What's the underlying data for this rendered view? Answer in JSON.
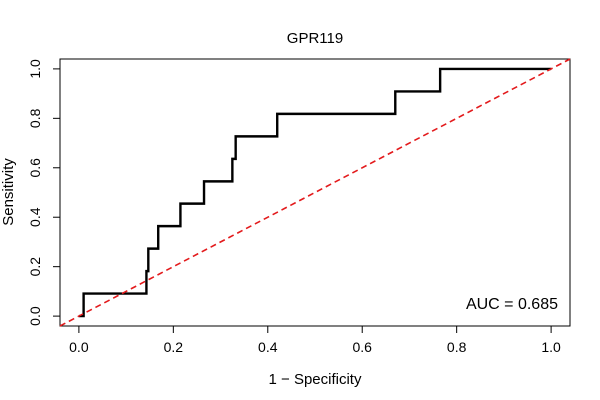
{
  "chart_data": {
    "type": "line",
    "title": "GPR119",
    "xlabel": "1 − Specificity",
    "ylabel": "Sensitivity",
    "xlim": [
      -0.04,
      1.04
    ],
    "ylim": [
      -0.04,
      1.04
    ],
    "x_ticks": [
      "0.0",
      "0.2",
      "0.4",
      "0.6",
      "0.8",
      "1.0"
    ],
    "y_ticks": [
      "0.0",
      "0.2",
      "0.4",
      "0.6",
      "0.8",
      "1.0"
    ],
    "grid": false,
    "series": [
      {
        "color": "#000000",
        "points": [
          [
            0,
            0
          ],
          [
            0.01,
            0
          ],
          [
            0.01,
            0.091
          ],
          [
            0.143,
            0.091
          ],
          [
            0.143,
            0.182
          ],
          [
            0.147,
            0.182
          ],
          [
            0.147,
            0.273
          ],
          [
            0.168,
            0.273
          ],
          [
            0.168,
            0.364
          ],
          [
            0.215,
            0.364
          ],
          [
            0.215,
            0.455
          ],
          [
            0.265,
            0.455
          ],
          [
            0.265,
            0.545
          ],
          [
            0.325,
            0.545
          ],
          [
            0.325,
            0.636
          ],
          [
            0.332,
            0.636
          ],
          [
            0.332,
            0.727
          ],
          [
            0.42,
            0.727
          ],
          [
            0.42,
            0.818
          ],
          [
            0.67,
            0.818
          ],
          [
            0.67,
            0.909
          ],
          [
            0.765,
            0.909
          ],
          [
            0.765,
            1.0
          ],
          [
            1.0,
            1.0
          ]
        ]
      },
      {
        "color": "#e31a1c",
        "dashed": true,
        "points": [
          [
            -0.04,
            -0.04
          ],
          [
            1.04,
            1.04
          ]
        ]
      }
    ],
    "annotation": "AUC = 0.685"
  }
}
